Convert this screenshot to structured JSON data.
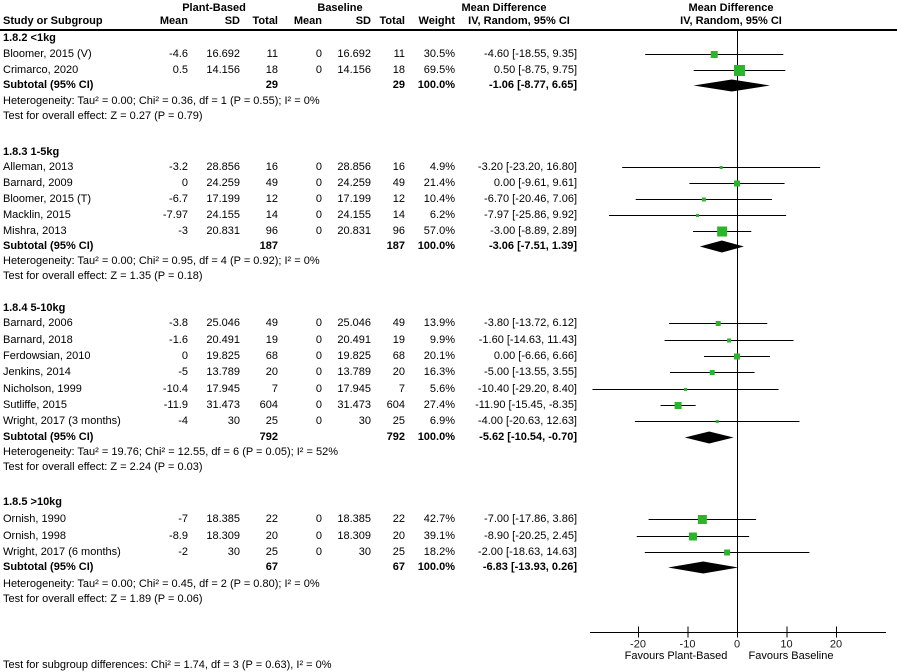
{
  "header": {
    "group1": "Plant-Based",
    "group2": "Baseline",
    "study_col": "Study or Subgroup",
    "mean_col": "Mean",
    "sd_col": "SD",
    "total_col": "Total",
    "weight_col": "Weight",
    "md_title": "Mean Difference",
    "md_sub": "IV, Random, 95% CI"
  },
  "footer": {
    "subgroup_test": "Test for subgroup differences: Chi² = 1.74, df = 3 (P = 0.63), I² = 0%"
  },
  "colors": {
    "marker_green": "#2bb52b",
    "diamond_black": "#000000",
    "line_black": "#000000"
  },
  "chart_data": {
    "type": "forest",
    "effect_measure": "Mean Difference",
    "model": "IV, Random, 95% CI",
    "axis": {
      "ticks": [
        -20,
        -10,
        0,
        10,
        20
      ],
      "xlim": [
        -30,
        30
      ],
      "favours_left": "Favours Plant-Based",
      "favours_right": "Favours Baseline"
    },
    "subgroups": [
      {
        "label": "1.8.2 <1kg",
        "studies": [
          {
            "name": "Bloomer, 2015 (V)",
            "mean1": "-4.6",
            "sd1": "16.692",
            "total1": "11",
            "mean2": "0",
            "sd2": "16.692",
            "total2": "11",
            "weight": "30.5%",
            "weight_pct": 30.5,
            "md": -4.6,
            "ci_lo": -18.55,
            "ci_hi": 9.35,
            "ci_text": "-4.60 [-18.55, 9.35]"
          },
          {
            "name": "Crimarco, 2020",
            "mean1": "0.5",
            "sd1": "14.156",
            "total1": "18",
            "mean2": "0",
            "sd2": "14.156",
            "total2": "18",
            "weight": "69.5%",
            "weight_pct": 69.5,
            "md": 0.5,
            "ci_lo": -8.75,
            "ci_hi": 9.75,
            "ci_text": "0.50 [-8.75, 9.75]"
          }
        ],
        "subtotal": {
          "label": "Subtotal (95% CI)",
          "total1": "29",
          "total2": "29",
          "weight": "100.0%",
          "md": -1.06,
          "ci_lo": -8.77,
          "ci_hi": 6.65,
          "ci_text": "-1.06 [-8.77, 6.65]"
        },
        "heterogeneity": "Heterogeneity: Tau² = 0.00; Chi² = 0.36, df = 1 (P = 0.55); I² = 0%",
        "overall_test": "Test for overall effect: Z = 0.27 (P = 0.79)"
      },
      {
        "label": "1.8.3 1-5kg",
        "studies": [
          {
            "name": "Alleman, 2013",
            "mean1": "-3.2",
            "sd1": "28.856",
            "total1": "16",
            "mean2": "0",
            "sd2": "28.856",
            "total2": "16",
            "weight": "4.9%",
            "weight_pct": 4.9,
            "md": -3.2,
            "ci_lo": -23.2,
            "ci_hi": 16.8,
            "ci_text": "-3.20 [-23.20, 16.80]"
          },
          {
            "name": "Barnard, 2009",
            "mean1": "0",
            "sd1": "24.259",
            "total1": "49",
            "mean2": "0",
            "sd2": "24.259",
            "total2": "49",
            "weight": "21.4%",
            "weight_pct": 21.4,
            "md": 0,
            "ci_lo": -9.61,
            "ci_hi": 9.61,
            "ci_text": "0.00 [-9.61, 9.61]"
          },
          {
            "name": "Bloomer, 2015 (T)",
            "mean1": "-6.7",
            "sd1": "17.199",
            "total1": "12",
            "mean2": "0",
            "sd2": "17.199",
            "total2": "12",
            "weight": "10.4%",
            "weight_pct": 10.4,
            "md": -6.7,
            "ci_lo": -20.46,
            "ci_hi": 7.06,
            "ci_text": "-6.70 [-20.46, 7.06]"
          },
          {
            "name": "Macklin, 2015",
            "mean1": "-7.97",
            "sd1": "24.155",
            "total1": "14",
            "mean2": "0",
            "sd2": "24.155",
            "total2": "14",
            "weight": "6.2%",
            "weight_pct": 6.2,
            "md": -7.97,
            "ci_lo": -25.86,
            "ci_hi": 9.92,
            "ci_text": "-7.97 [-25.86, 9.92]"
          },
          {
            "name": "Mishra, 2013",
            "mean1": "-3",
            "sd1": "20.831",
            "total1": "96",
            "mean2": "0",
            "sd2": "20.831",
            "total2": "96",
            "weight": "57.0%",
            "weight_pct": 57.0,
            "md": -3,
            "ci_lo": -8.89,
            "ci_hi": 2.89,
            "ci_text": "-3.00 [-8.89, 2.89]"
          }
        ],
        "subtotal": {
          "label": "Subtotal (95% CI)",
          "total1": "187",
          "total2": "187",
          "weight": "100.0%",
          "md": -3.06,
          "ci_lo": -7.51,
          "ci_hi": 1.39,
          "ci_text": "-3.06 [-7.51, 1.39]"
        },
        "heterogeneity": "Heterogeneity: Tau² = 0.00; Chi² = 0.95, df = 4 (P = 0.92); I² = 0%",
        "overall_test": "Test for overall effect: Z = 1.35 (P = 0.18)"
      },
      {
        "label": "1.8.4 5-10kg",
        "studies": [
          {
            "name": "Barnard, 2006",
            "mean1": "-3.8",
            "sd1": "25.046",
            "total1": "49",
            "mean2": "0",
            "sd2": "25.046",
            "total2": "49",
            "weight": "13.9%",
            "weight_pct": 13.9,
            "md": -3.8,
            "ci_lo": -13.72,
            "ci_hi": 6.12,
            "ci_text": "-3.80 [-13.72, 6.12]"
          },
          {
            "name": "Barnard, 2018",
            "mean1": "-1.6",
            "sd1": "20.491",
            "total1": "19",
            "mean2": "0",
            "sd2": "20.491",
            "total2": "19",
            "weight": "9.9%",
            "weight_pct": 9.9,
            "md": -1.6,
            "ci_lo": -14.63,
            "ci_hi": 11.43,
            "ci_text": "-1.60 [-14.63, 11.43]"
          },
          {
            "name": "Ferdowsian, 2010",
            "mean1": "0",
            "sd1": "19.825",
            "total1": "68",
            "mean2": "0",
            "sd2": "19.825",
            "total2": "68",
            "weight": "20.1%",
            "weight_pct": 20.1,
            "md": 0,
            "ci_lo": -6.66,
            "ci_hi": 6.66,
            "ci_text": "0.00 [-6.66, 6.66]"
          },
          {
            "name": "Jenkins, 2014",
            "mean1": "-5",
            "sd1": "13.789",
            "total1": "20",
            "mean2": "0",
            "sd2": "13.789",
            "total2": "20",
            "weight": "16.3%",
            "weight_pct": 16.3,
            "md": -5,
            "ci_lo": -13.55,
            "ci_hi": 3.55,
            "ci_text": "-5.00 [-13.55, 3.55]"
          },
          {
            "name": "Nicholson, 1999",
            "mean1": "-10.4",
            "sd1": "17.945",
            "total1": "7",
            "mean2": "0",
            "sd2": "17.945",
            "total2": "7",
            "weight": "5.6%",
            "weight_pct": 5.6,
            "md": -10.4,
            "ci_lo": -29.2,
            "ci_hi": 8.4,
            "ci_text": "-10.40 [-29.20, 8.40]"
          },
          {
            "name": "Sutliffe, 2015",
            "mean1": "-11.9",
            "sd1": "31.473",
            "total1": "604",
            "mean2": "0",
            "sd2": "31.473",
            "total2": "604",
            "weight": "27.4%",
            "weight_pct": 27.4,
            "md": -11.9,
            "ci_lo": -15.45,
            "ci_hi": -8.35,
            "ci_text": "-11.90 [-15.45, -8.35]"
          },
          {
            "name": "Wright, 2017 (3 months)",
            "mean1": "-4",
            "sd1": "30",
            "total1": "25",
            "mean2": "0",
            "sd2": "30",
            "total2": "25",
            "weight": "6.9%",
            "weight_pct": 6.9,
            "md": -4,
            "ci_lo": -20.63,
            "ci_hi": 12.63,
            "ci_text": "-4.00 [-20.63, 12.63]"
          }
        ],
        "subtotal": {
          "label": "Subtotal (95% CI)",
          "total1": "792",
          "total2": "792",
          "weight": "100.0%",
          "md": -5.62,
          "ci_lo": -10.54,
          "ci_hi": -0.7,
          "ci_text": "-5.62 [-10.54, -0.70]"
        },
        "heterogeneity": "Heterogeneity: Tau² = 19.76; Chi² = 12.55, df = 6 (P = 0.05); I² = 52%",
        "overall_test": "Test for overall effect: Z = 2.24 (P = 0.03)"
      },
      {
        "label": "1.8.5 >10kg",
        "studies": [
          {
            "name": "Ornish, 1990",
            "mean1": "-7",
            "sd1": "18.385",
            "total1": "22",
            "mean2": "0",
            "sd2": "18.385",
            "total2": "22",
            "weight": "42.7%",
            "weight_pct": 42.7,
            "md": -7,
            "ci_lo": -17.86,
            "ci_hi": 3.86,
            "ci_text": "-7.00 [-17.86, 3.86]"
          },
          {
            "name": "Ornish, 1998",
            "mean1": "-8.9",
            "sd1": "18.309",
            "total1": "20",
            "mean2": "0",
            "sd2": "18.309",
            "total2": "20",
            "weight": "39.1%",
            "weight_pct": 39.1,
            "md": -8.9,
            "ci_lo": -20.25,
            "ci_hi": 2.45,
            "ci_text": "-8.90 [-20.25, 2.45]"
          },
          {
            "name": "Wright, 2017 (6 months)",
            "mean1": "-2",
            "sd1": "30",
            "total1": "25",
            "mean2": "0",
            "sd2": "30",
            "total2": "25",
            "weight": "18.2%",
            "weight_pct": 18.2,
            "md": -2,
            "ci_lo": -18.63,
            "ci_hi": 14.63,
            "ci_text": "-2.00 [-18.63, 14.63]"
          }
        ],
        "subtotal": {
          "label": "Subtotal (95% CI)",
          "total1": "67",
          "total2": "67",
          "weight": "100.0%",
          "md": -6.83,
          "ci_lo": -13.93,
          "ci_hi": 0.26,
          "ci_text": "-6.83 [-13.93, 0.26]"
        },
        "heterogeneity": "Heterogeneity: Tau² = 0.00; Chi² = 0.45, df = 2 (P = 0.80); I² = 0%",
        "overall_test": "Test for overall effect: Z = 1.89 (P = 0.06)"
      }
    ]
  }
}
